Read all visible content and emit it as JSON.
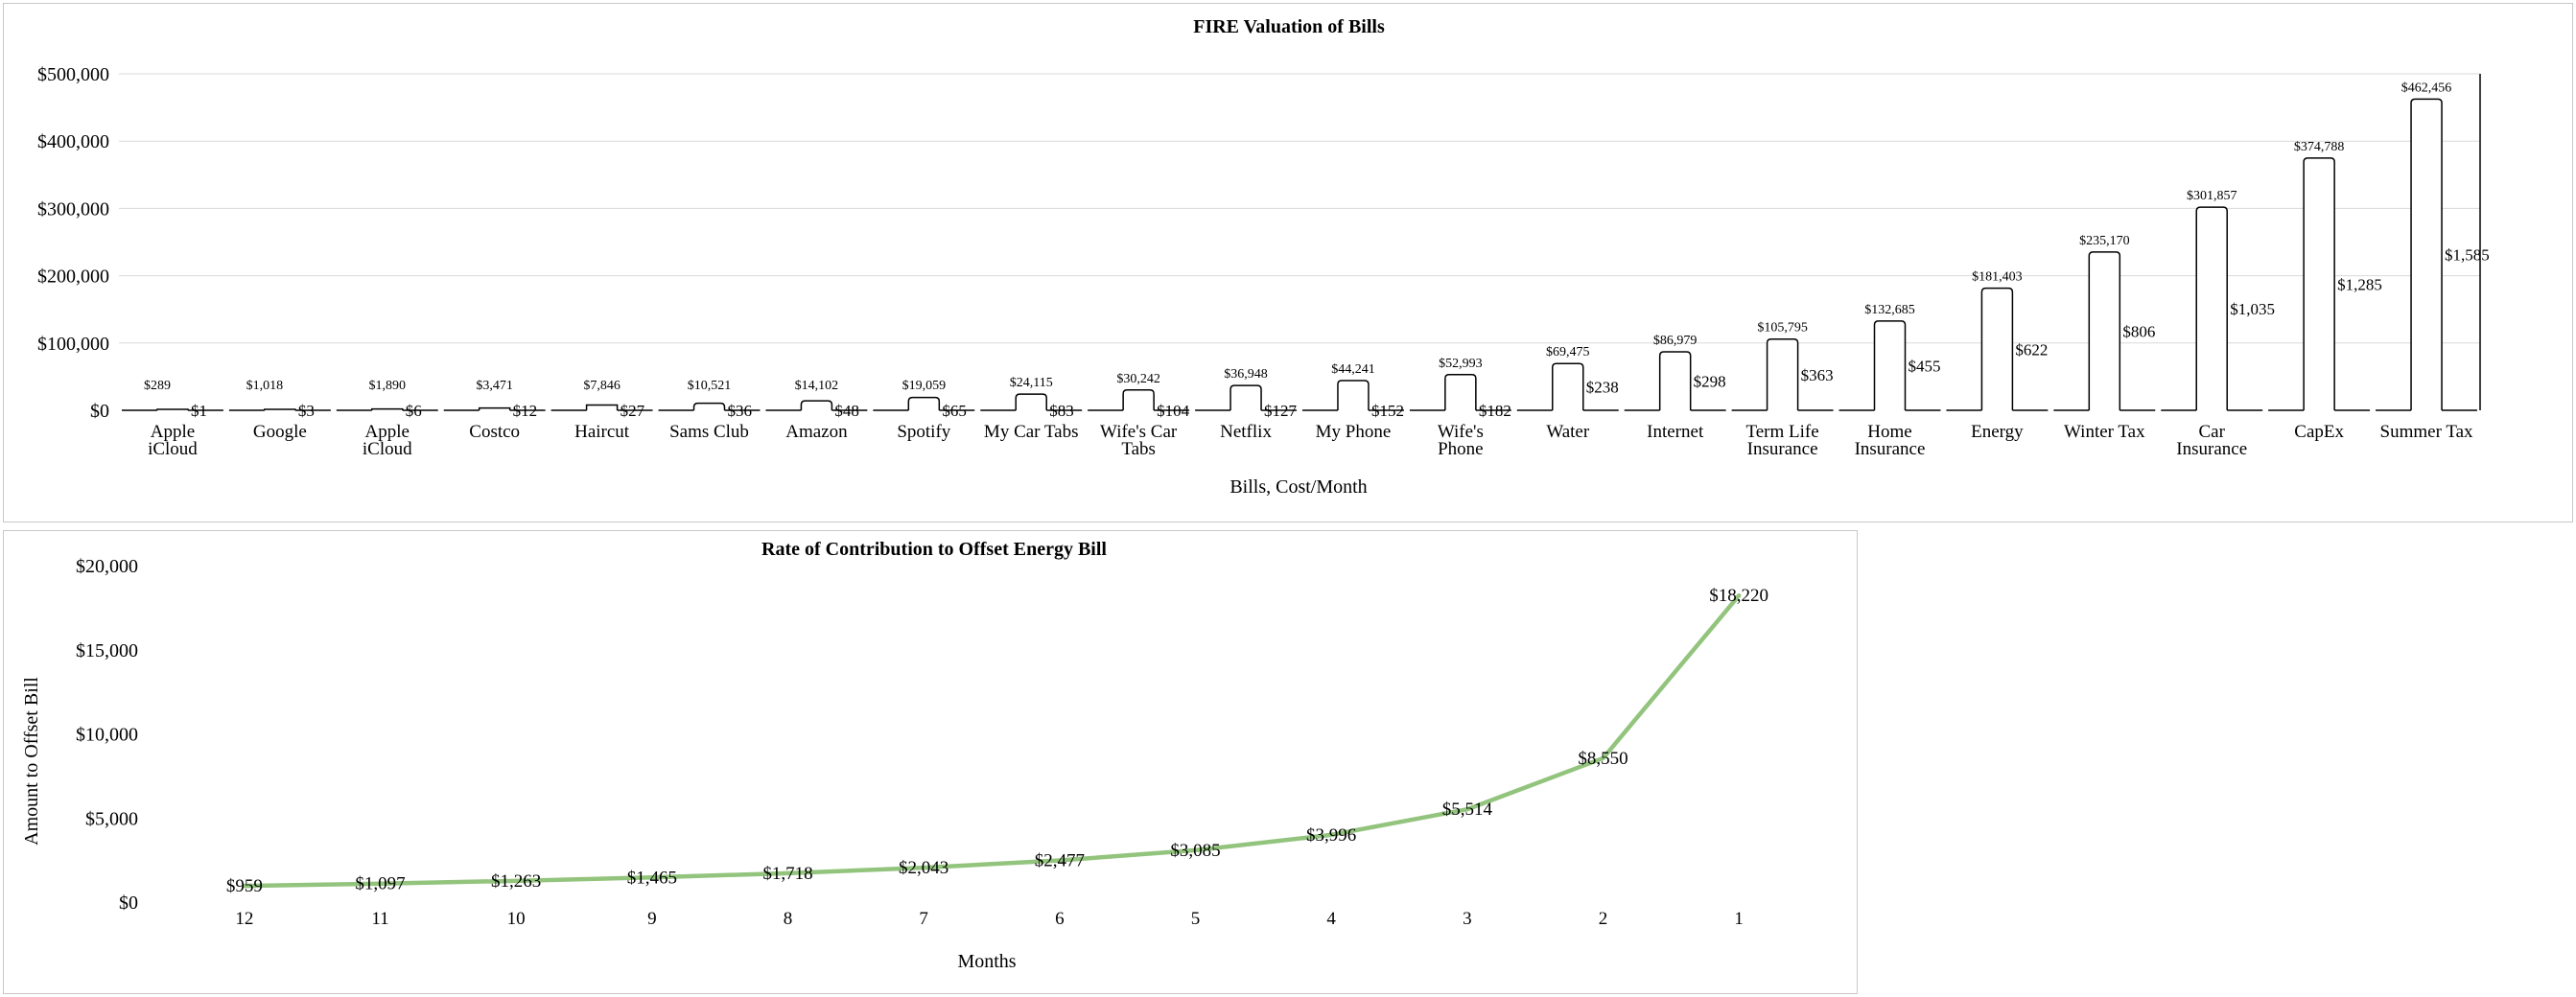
{
  "chart_data": [
    {
      "type": "bar",
      "title": "FIRE Valuation of Bills",
      "xlabel": "Bills, Cost/Month",
      "ylabel": "",
      "ylim": [
        0,
        500000
      ],
      "y_ticks": [
        "$0",
        "$100,000",
        "$200,000",
        "$300,000",
        "$400,000",
        "$500,000"
      ],
      "grid": true,
      "categories": [
        [
          "Apple",
          "iCloud"
        ],
        [
          "Google"
        ],
        [
          "Apple",
          "iCloud"
        ],
        [
          "Costco"
        ],
        [
          "Haircut"
        ],
        [
          "Sams Club"
        ],
        [
          "Amazon"
        ],
        [
          "Spotify"
        ],
        [
          "My Car Tabs"
        ],
        [
          "Wife's Car",
          "Tabs"
        ],
        [
          "Netflix"
        ],
        [
          "My Phone"
        ],
        [
          "Wife's",
          "Phone"
        ],
        [
          "Water"
        ],
        [
          "Internet"
        ],
        [
          "Term Life",
          "Insurance"
        ],
        [
          "Home",
          "Insurance"
        ],
        [
          "Energy"
        ],
        [
          "Winter Tax"
        ],
        [
          "Car",
          "Insurance"
        ],
        [
          "CapEx"
        ],
        [
          "Summer Tax"
        ]
      ],
      "series": [
        {
          "values": [
            289,
            1018,
            1890,
            3471,
            7846,
            10521,
            14102,
            19059,
            24115,
            30242,
            36948,
            44241,
            52993,
            69475,
            86979,
            105795,
            132685,
            181403,
            235170,
            301857,
            374788,
            462456
          ],
          "labels": [
            "$289",
            "$1,018",
            "$1,890",
            "$3,471",
            "$7,846",
            "$10,521",
            "$14,102",
            "$19,059",
            "$24,115",
            "$30,242",
            "$36,948",
            "$44,241",
            "$52,993",
            "$69,475",
            "$86,979",
            "$105,795",
            "$132,685",
            "$181,403",
            "$235,170",
            "$301,857",
            "$374,788",
            "$462,456"
          ]
        },
        {
          "values": [
            1,
            3,
            6,
            12,
            27,
            36,
            48,
            65,
            83,
            104,
            127,
            152,
            182,
            238,
            298,
            363,
            455,
            622,
            806,
            1035,
            1285,
            1585
          ],
          "labels": [
            "$1",
            "$3",
            "$6",
            "$12",
            "$27",
            "$36",
            "$48",
            "$65",
            "$83",
            "$104",
            "$127",
            "$152",
            "$182",
            "$238",
            "$298",
            "$363",
            "$455",
            "$622",
            "$806",
            "$1,035",
            "$1,285",
            "$1,585"
          ]
        }
      ]
    },
    {
      "type": "line",
      "title": "Rate of Contribution to Offset Energy Bill",
      "xlabel": "Months",
      "ylabel": "Amount to Offset Bill",
      "ylim": [
        0,
        20000
      ],
      "y_ticks": [
        "$0",
        "$5,000",
        "$10,000",
        "$15,000",
        "$20,000"
      ],
      "grid": false,
      "line_color": "#93c47d",
      "categories": [
        "12",
        "11",
        "10",
        "9",
        "8",
        "7",
        "6",
        "5",
        "4",
        "3",
        "2",
        "1"
      ],
      "series": [
        {
          "values": [
            959,
            1097,
            1263,
            1465,
            1718,
            2043,
            2477,
            3085,
            3996,
            5514,
            8550,
            18220
          ],
          "labels": [
            "$959",
            "$1,097",
            "$1,263",
            "$1,465",
            "$1,718",
            "$2,043",
            "$2,477",
            "$3,085",
            "$3,996",
            "$5,514",
            "$8,550",
            "$18,220"
          ]
        }
      ]
    }
  ]
}
